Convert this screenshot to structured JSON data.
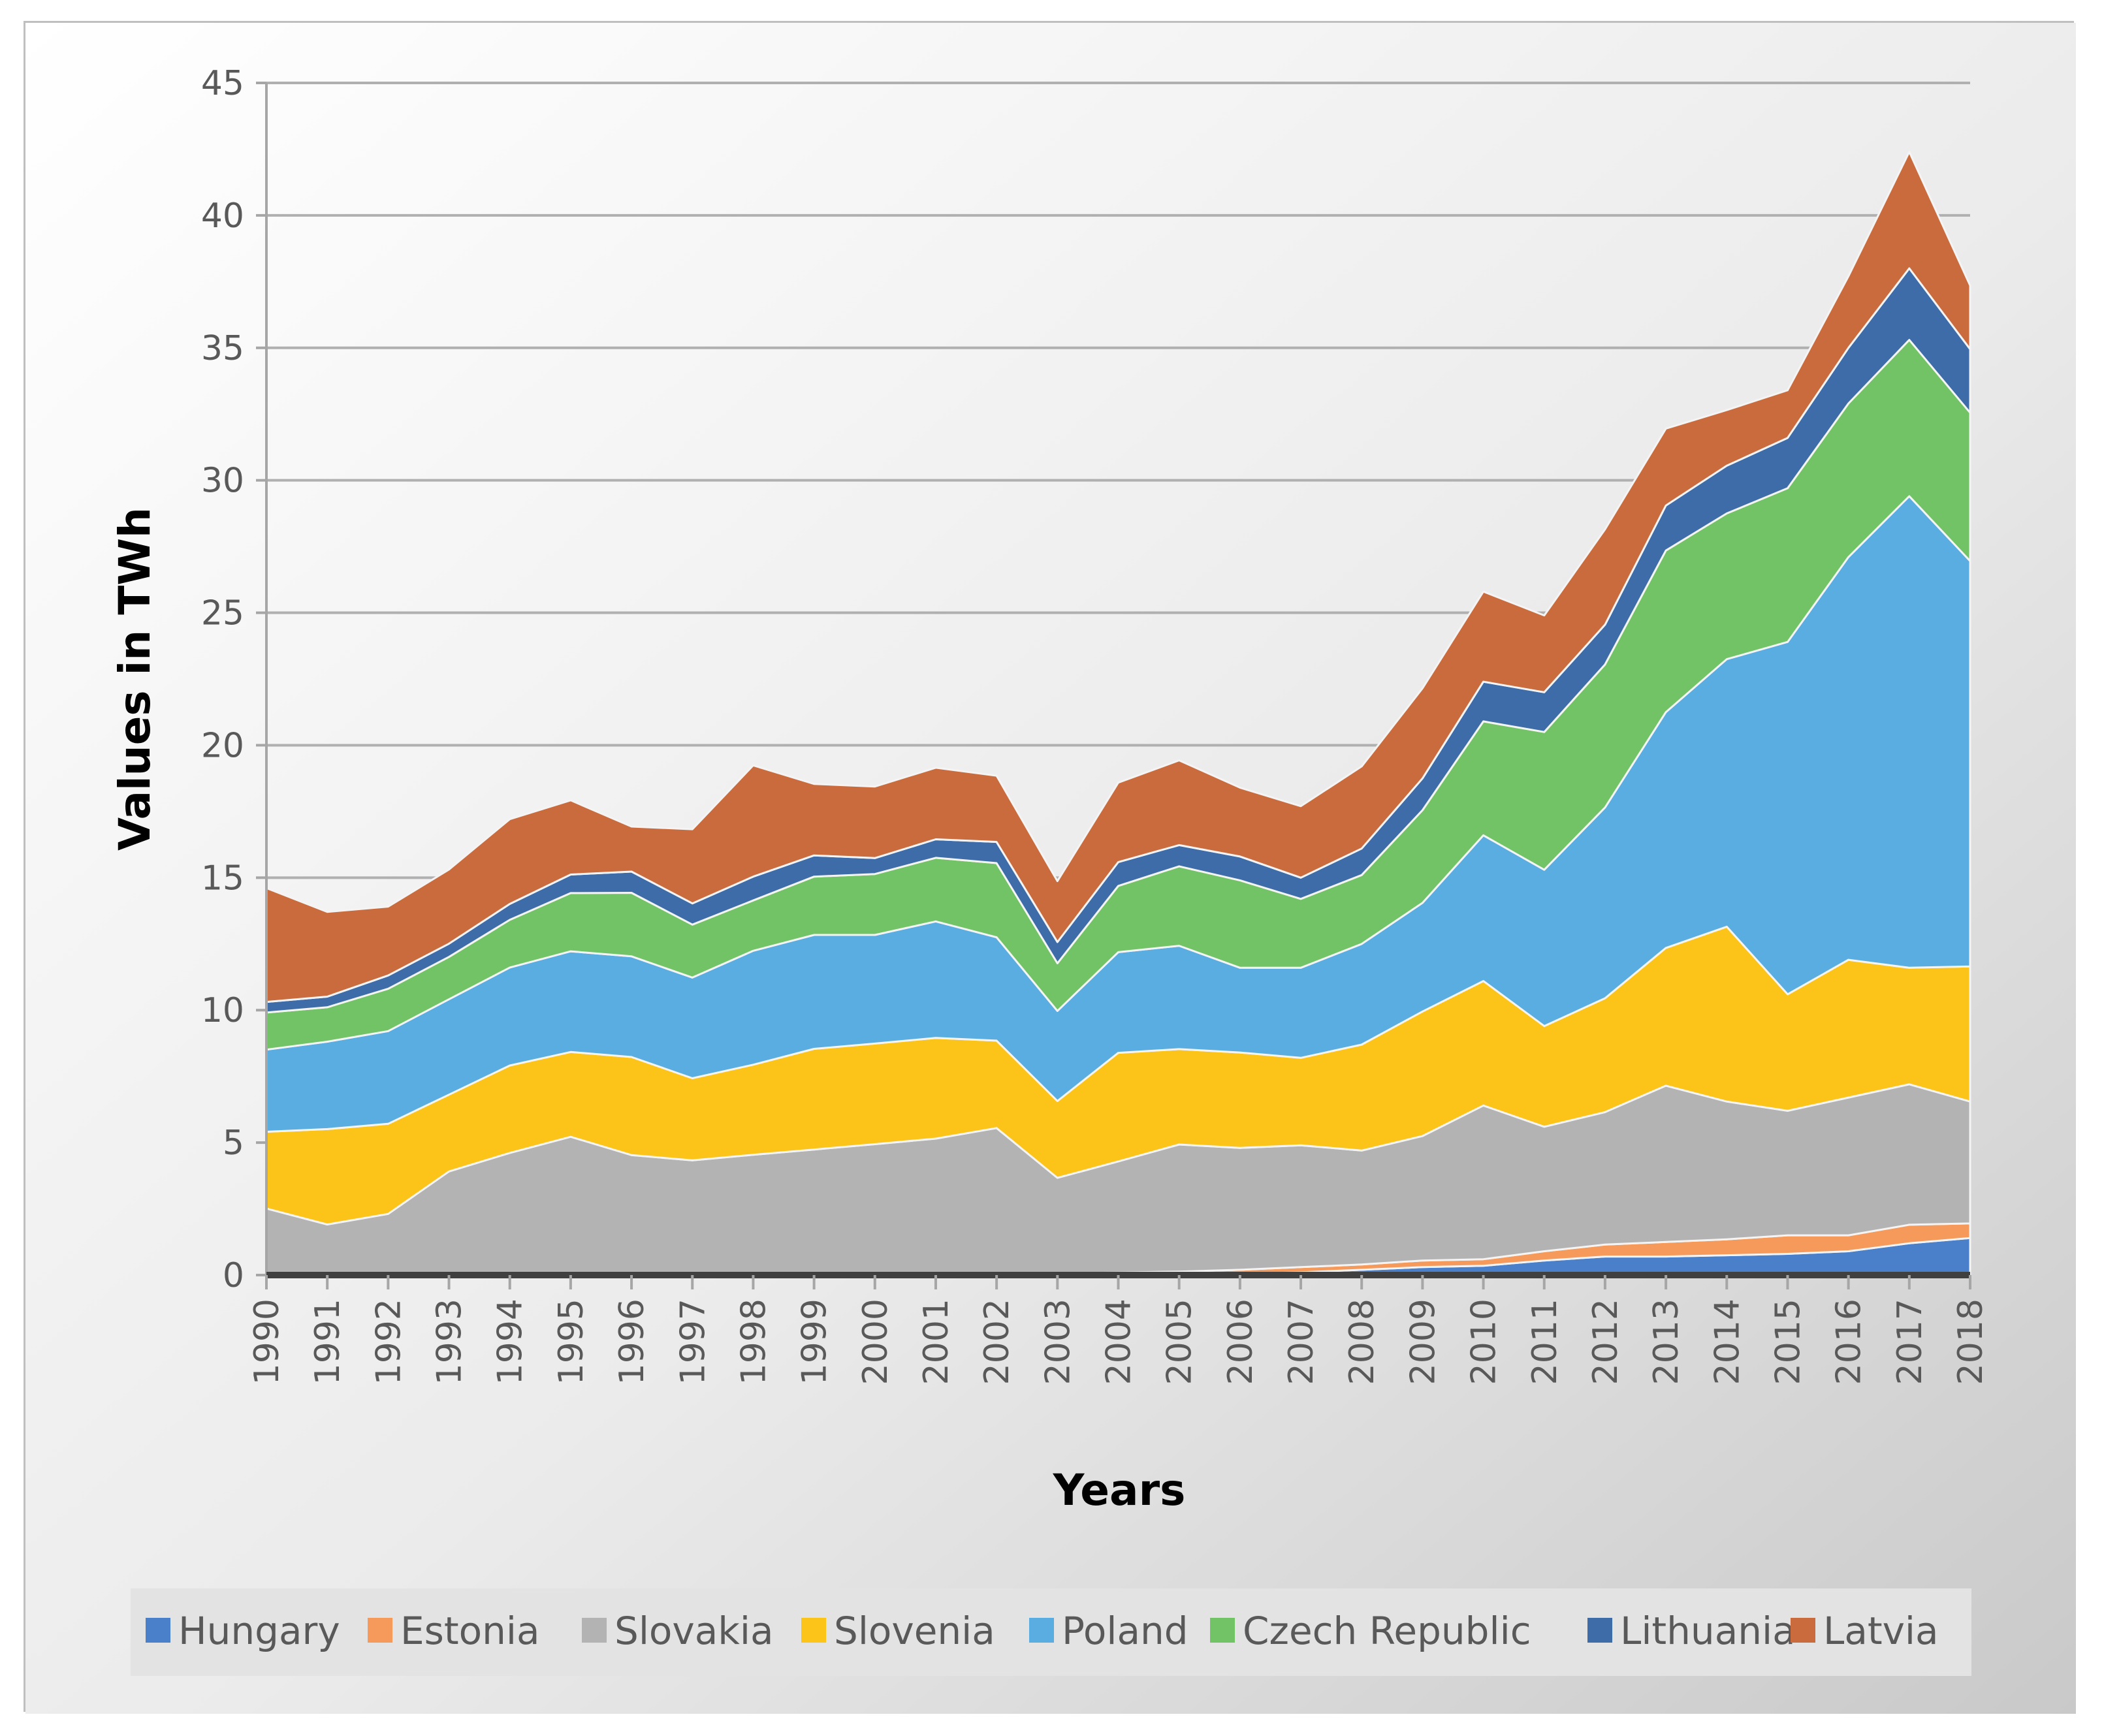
{
  "chart_data": {
    "type": "area",
    "stacked": true,
    "xlabel": "Years",
    "ylabel": "Values in TWh",
    "ylim": [
      0,
      45
    ],
    "yticks": [
      0,
      5,
      10,
      15,
      20,
      25,
      30,
      35,
      40,
      45
    ],
    "grid": true,
    "legend_position": "bottom",
    "x": [
      "1990",
      "1991",
      "1992",
      "1993",
      "1994",
      "1995",
      "1996",
      "1997",
      "1998",
      "1999",
      "2000",
      "2001",
      "2002",
      "2003",
      "2004",
      "2005",
      "2006",
      "2007",
      "2008",
      "2009",
      "2010",
      "2011",
      "2012",
      "2013",
      "2014",
      "2015",
      "2016",
      "2017",
      "2018"
    ],
    "series": [
      {
        "name": "Hungary",
        "color": "#4a7fc9",
        "values": [
          0.01,
          0.01,
          0.01,
          0.01,
          0.01,
          0.01,
          0.01,
          0.01,
          0.02,
          0.02,
          0.02,
          0.02,
          0.02,
          0.02,
          0.03,
          0.03,
          0.05,
          0.1,
          0.2,
          0.3,
          0.35,
          0.55,
          0.7,
          0.7,
          0.75,
          0.8,
          0.9,
          1.2,
          1.4
        ]
      },
      {
        "name": "Estonia",
        "color": "#f59a5a",
        "values": [
          0,
          0,
          0,
          0,
          0,
          0.01,
          0.02,
          0.02,
          0.02,
          0.02,
          0.02,
          0.03,
          0.03,
          0.05,
          0.06,
          0.1,
          0.15,
          0.2,
          0.2,
          0.25,
          0.25,
          0.35,
          0.45,
          0.55,
          0.6,
          0.7,
          0.6,
          0.7,
          0.55
        ]
      },
      {
        "name": "Slovakia",
        "color": "#b3b3b3",
        "values": [
          2.5,
          1.9,
          2.3,
          3.9,
          4.6,
          5.2,
          4.5,
          4.3,
          4.5,
          4.7,
          4.9,
          5.1,
          5.5,
          3.6,
          4.2,
          4.8,
          4.6,
          4.6,
          4.3,
          4.7,
          5.8,
          4.7,
          5.0,
          5.9,
          5.2,
          4.7,
          5.2,
          5.3,
          4.6
        ]
      },
      {
        "name": "Slovenia",
        "color": "#fcc419",
        "values": [
          2.9,
          3.6,
          3.4,
          2.9,
          3.3,
          3.2,
          3.7,
          3.1,
          3.4,
          3.8,
          3.8,
          3.8,
          3.3,
          2.9,
          4.1,
          3.6,
          3.6,
          3.3,
          4.0,
          4.7,
          4.7,
          3.8,
          4.3,
          5.2,
          6.6,
          4.4,
          5.2,
          4.4,
          5.1
        ]
      },
      {
        "name": "Poland",
        "color": "#5aade0",
        "values": [
          3.1,
          3.3,
          3.5,
          3.6,
          3.7,
          3.8,
          3.8,
          3.8,
          4.3,
          4.3,
          4.1,
          4.4,
          3.9,
          3.4,
          3.8,
          3.9,
          3.2,
          3.4,
          3.8,
          4.1,
          5.5,
          5.9,
          7.2,
          8.9,
          10.1,
          13.3,
          15.2,
          17.8,
          15.3
        ]
      },
      {
        "name": "Czech Republic",
        "color": "#72c266",
        "values": [
          1.4,
          1.3,
          1.6,
          1.6,
          1.8,
          2.2,
          2.4,
          2.0,
          1.9,
          2.2,
          2.3,
          2.4,
          2.8,
          1.8,
          2.5,
          3.0,
          3.3,
          2.6,
          2.6,
          3.5,
          4.3,
          5.2,
          5.4,
          6.1,
          5.5,
          5.8,
          5.8,
          5.9,
          5.6
        ]
      },
      {
        "name": "Lithuania",
        "color": "#3d6ca8",
        "values": [
          0.4,
          0.4,
          0.5,
          0.5,
          0.6,
          0.7,
          0.8,
          0.8,
          0.9,
          0.8,
          0.6,
          0.7,
          0.8,
          0.8,
          0.9,
          0.8,
          0.9,
          0.8,
          1.0,
          1.2,
          1.5,
          1.5,
          1.5,
          1.7,
          1.8,
          1.9,
          2.1,
          2.7,
          2.4
        ]
      },
      {
        "name": "Latvia",
        "color": "#c96b3c",
        "values": [
          4.3,
          3.2,
          2.6,
          2.8,
          3.2,
          2.8,
          1.7,
          2.8,
          4.2,
          2.7,
          2.7,
          2.7,
          2.5,
          2.3,
          3.0,
          3.2,
          2.6,
          2.7,
          3.1,
          3.4,
          3.4,
          2.9,
          3.6,
          2.9,
          2.1,
          1.8,
          2.7,
          4.4,
          2.4
        ]
      }
    ]
  }
}
